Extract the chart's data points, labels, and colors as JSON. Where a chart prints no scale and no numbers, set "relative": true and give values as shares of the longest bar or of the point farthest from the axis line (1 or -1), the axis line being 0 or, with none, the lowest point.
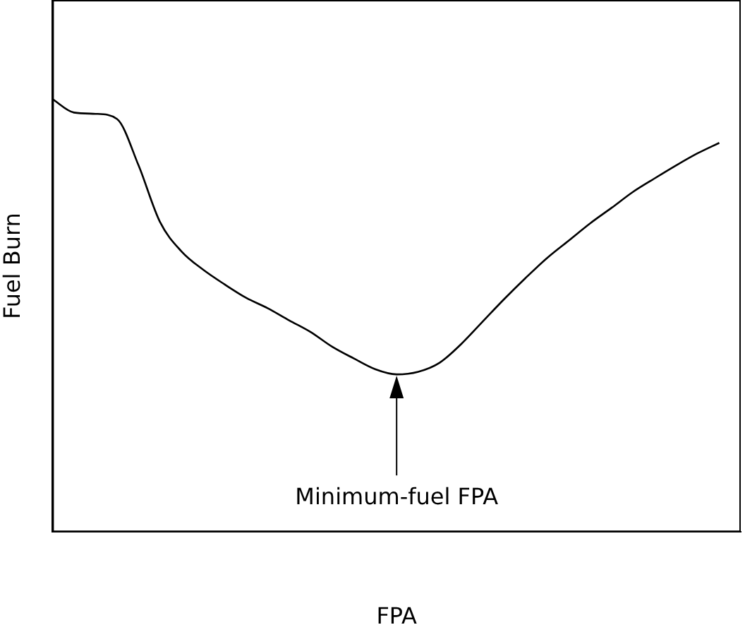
{
  "chart_data": {
    "type": "line",
    "relative": true,
    "xlabel": "FPA",
    "ylabel": "Fuel Burn",
    "categories": [
      null,
      null,
      null,
      null,
      null,
      null,
      null,
      null,
      null,
      null,
      null,
      null,
      null,
      null,
      null,
      null,
      null,
      null,
      null,
      null,
      null,
      null,
      null,
      null,
      null,
      null,
      null,
      null,
      null,
      null,
      null,
      null,
      null
    ],
    "series": [
      {
        "color": "#000000",
        "values": [
          1.0,
          0.969,
          0.966,
          0.954,
          0.847,
          0.716,
          0.648,
          0.606,
          0.572,
          0.541,
          0.517,
          0.489,
          0.462,
          0.428,
          0.401,
          0.376,
          0.364,
          0.37,
          0.391,
          0.434,
          0.486,
          0.538,
          0.587,
          0.633,
          0.673,
          0.713,
          0.749,
          0.786,
          0.817,
          0.847,
          0.875,
          0.899,
          null
        ]
      }
    ],
    "annotations": [
      "Minimum-fuel FPA"
    ],
    "grid": false,
    "legend": false,
    "marker": "none",
    "line_style": "solid"
  }
}
